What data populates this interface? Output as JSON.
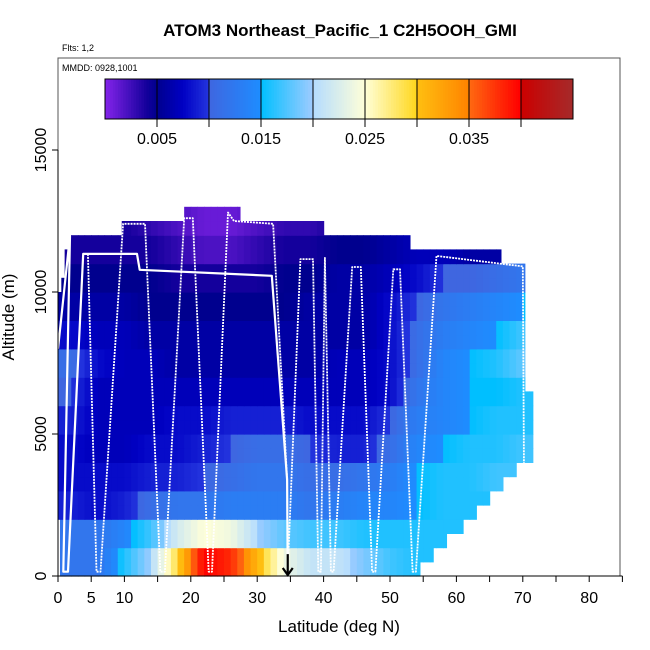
{
  "chart_data": {
    "type": "heatmap",
    "title": "ATOM3 Northeast_Pacific_1 C2H5OOH_GMI",
    "flights_note": "Flts: 1,2",
    "date_note": "MMDD: 0928,1001",
    "xlabel": "Latitude (deg N)",
    "ylabel": "Altitude (m)",
    "xlim": [
      0,
      85
    ],
    "ylim": [
      0,
      18000
    ],
    "xticks": [
      0,
      5,
      10,
      15,
      20,
      25,
      30,
      35,
      40,
      45,
      50,
      55,
      60,
      65,
      70,
      75,
      80,
      85
    ],
    "xtick_labels": [
      {
        "value": 0,
        "label": "0"
      },
      {
        "value": 5,
        "label": "5"
      },
      {
        "value": 10,
        "label": "10"
      },
      {
        "value": 20,
        "label": "20"
      },
      {
        "value": 30,
        "label": "30"
      },
      {
        "value": 40,
        "label": "40"
      },
      {
        "value": 50,
        "label": "50"
      },
      {
        "value": 60,
        "label": "60"
      },
      {
        "value": 70,
        "label": "70"
      },
      {
        "value": 80,
        "label": "80"
      }
    ],
    "yticks": [
      {
        "value": 0,
        "label": "0"
      },
      {
        "value": 5000,
        "label": "5000"
      },
      {
        "value": 10000,
        "label": "10000"
      },
      {
        "value": 15000,
        "label": "15000"
      }
    ],
    "colorbar": {
      "range": [
        0,
        0.045
      ],
      "boundaries": [
        0.005,
        0.01,
        0.015,
        0.02,
        0.025,
        0.03,
        0.035,
        0.04
      ],
      "labels": [
        {
          "value": 0.005,
          "label": "0.005"
        },
        {
          "value": 0.015,
          "label": "0.015"
        },
        {
          "value": 0.025,
          "label": "0.025"
        },
        {
          "value": 0.035,
          "label": "0.035"
        }
      ],
      "stops": [
        [
          0.0,
          "#8424ea"
        ],
        [
          0.004,
          "#14009c"
        ],
        [
          0.005,
          "#00008e"
        ],
        [
          0.0075,
          "#0000c4"
        ],
        [
          0.0099,
          "#2233dd"
        ],
        [
          0.01,
          "#3f66e0"
        ],
        [
          0.0149,
          "#1e8cff"
        ],
        [
          0.015,
          "#00bfff"
        ],
        [
          0.0199,
          "#9ccbff"
        ],
        [
          0.02,
          "#b4dcff"
        ],
        [
          0.025,
          "#ffffd8"
        ],
        [
          0.0299,
          "#ffd820"
        ],
        [
          0.03,
          "#ffc010"
        ],
        [
          0.0349,
          "#ff8400"
        ],
        [
          0.035,
          "#ff6a10"
        ],
        [
          0.0399,
          "#ff0000"
        ],
        [
          0.04,
          "#cc0000"
        ],
        [
          0.045,
          "#a52a2a"
        ]
      ]
    },
    "grid": {
      "lat_centers": [
        2,
        6,
        10,
        14,
        18,
        22,
        26,
        30,
        34,
        38,
        42,
        46,
        50,
        54,
        58,
        62,
        66,
        70
      ],
      "alt_bin_size_m": 1000,
      "values": [
        [
          0.012,
          0.012,
          0.016,
          0.02,
          0.029,
          0.04,
          0.038,
          0.031,
          0.024,
          0.021,
          0.021,
          0.019,
          0.017,
          0.016,
          0.016,
          0.016,
          0.016,
          0.016
        ],
        [
          0.012,
          0.012,
          0.014,
          0.017,
          0.022,
          0.025,
          0.024,
          0.02,
          0.018,
          0.017,
          0.017,
          0.016,
          0.016,
          0.016,
          0.016,
          0.016,
          0.016,
          0.016
        ],
        [
          0.009,
          0.008,
          0.009,
          0.011,
          0.012,
          0.012,
          0.013,
          0.013,
          0.013,
          0.012,
          0.013,
          0.014,
          0.014,
          0.015,
          0.016,
          0.016,
          0.016,
          0.016
        ],
        [
          0.008,
          0.008,
          0.008,
          0.009,
          0.009,
          0.01,
          0.011,
          0.012,
          0.012,
          0.011,
          0.011,
          0.012,
          0.013,
          0.015,
          0.016,
          0.016,
          0.017,
          0.017
        ],
        [
          0.008,
          0.007,
          0.007,
          0.008,
          0.008,
          0.009,
          0.01,
          0.011,
          0.011,
          0.01,
          0.009,
          0.009,
          0.011,
          0.014,
          0.015,
          0.016,
          0.016,
          0.017
        ],
        [
          0.009,
          0.007,
          0.007,
          0.007,
          0.008,
          0.008,
          0.009,
          0.009,
          0.009,
          0.008,
          0.008,
          0.008,
          0.01,
          0.013,
          0.014,
          0.015,
          0.016,
          0.016
        ],
        [
          0.01,
          0.007,
          0.007,
          0.007,
          0.007,
          0.007,
          0.007,
          0.007,
          0.007,
          0.007,
          0.007,
          0.007,
          0.008,
          0.012,
          0.014,
          0.015,
          0.015,
          0.016
        ],
        [
          0.011,
          0.008,
          0.007,
          0.007,
          0.006,
          0.006,
          0.006,
          0.006,
          0.006,
          0.006,
          0.007,
          0.007,
          0.008,
          0.011,
          0.014,
          0.015,
          0.016,
          0.018
        ],
        [
          0.008,
          0.007,
          0.007,
          0.006,
          0.006,
          0.006,
          0.006,
          0.006,
          0.006,
          0.006,
          0.006,
          0.006,
          0.008,
          0.011,
          0.013,
          0.014,
          0.015,
          0.017
        ],
        [
          0.006,
          0.006,
          0.006,
          0.005,
          0.005,
          0.005,
          0.005,
          0.005,
          0.005,
          0.006,
          0.006,
          0.006,
          0.008,
          0.01,
          0.012,
          0.013,
          0.014,
          0.015
        ],
        [
          0.005,
          0.005,
          0.005,
          0.005,
          0.004,
          0.004,
          0.004,
          0.004,
          0.005,
          0.005,
          0.006,
          0.006,
          0.007,
          0.008,
          0.01,
          0.01,
          0.011,
          0.012
        ],
        [
          0.004,
          0.004,
          0.004,
          0.004,
          0.003,
          0.002,
          0.002,
          0.003,
          0.004,
          0.004,
          0.005,
          0.005,
          0.006,
          0.007,
          0.007,
          0.006,
          0.006,
          0.006
        ],
        [
          0.004,
          0.004,
          0.004,
          0.003,
          0.002,
          0.001,
          0.001,
          0.002,
          0.003,
          0.003,
          0.004,
          0.004,
          0.005,
          0.005,
          0.005,
          0.005,
          0.005,
          0.005
        ]
      ],
      "row_size_m": 500,
      "row_lat_extents": [
        [
          0.3,
          54.5
        ],
        [
          0.3,
          56.5
        ],
        [
          0.3,
          58.5
        ],
        [
          0.3,
          61
        ],
        [
          0,
          63
        ],
        [
          0,
          65
        ],
        [
          0,
          67
        ],
        [
          0,
          69
        ],
        [
          0,
          71.5
        ],
        [
          0,
          71.5
        ],
        [
          0,
          71.5
        ],
        [
          0,
          71.5
        ],
        [
          0,
          71.5
        ],
        [
          0,
          70.3
        ],
        [
          0,
          70.3
        ],
        [
          0,
          70.3
        ],
        [
          0,
          70.3
        ],
        [
          0,
          70.3
        ],
        [
          0,
          70.3
        ],
        [
          0,
          70.3
        ],
        [
          0.5,
          70.3
        ],
        [
          1,
          70.3
        ],
        [
          1,
          66.7
        ],
        [
          1.8,
          53
        ],
        [
          9.6,
          40
        ],
        [
          19,
          27.4
        ]
      ]
    },
    "flight_track": {
      "level_legs": [
        [
          [
            0,
            8000
          ],
          [
            1.8,
            12000
          ],
          [
            0.8,
            150
          ],
          [
            1.5,
            150
          ],
          [
            3.8,
            11340
          ],
          [
            11.9,
            11340
          ],
          [
            12.3,
            10780
          ],
          [
            32.2,
            10570
          ],
          [
            34.5,
            3400
          ],
          [
            34.6,
            150
          ]
        ]
      ],
      "profiles": [
        [
          [
            4.5,
            11340
          ],
          [
            5.8,
            150
          ],
          [
            6.4,
            150
          ],
          [
            9.8,
            12400
          ],
          [
            13.1,
            12400
          ],
          [
            15.4,
            150
          ],
          [
            16.1,
            150
          ],
          [
            19,
            12600
          ],
          [
            20.3,
            12600
          ],
          [
            22.7,
            150
          ],
          [
            23.2,
            150
          ],
          [
            25.6,
            12800
          ],
          [
            26.5,
            12500
          ],
          [
            32.4,
            12400
          ],
          [
            34.5,
            3400
          ]
        ],
        [
          [
            34.6,
            150
          ],
          [
            36.5,
            11160
          ],
          [
            38.4,
            11160
          ],
          [
            39.2,
            150
          ],
          [
            39.6,
            150
          ],
          [
            40.2,
            11200
          ],
          [
            41.1,
            150
          ],
          [
            41.5,
            150
          ],
          [
            44.3,
            10880
          ],
          [
            45.6,
            10880
          ],
          [
            47.3,
            150
          ],
          [
            47.8,
            150
          ],
          [
            50.5,
            10800
          ],
          [
            51.5,
            10800
          ],
          [
            53.4,
            150
          ],
          [
            53.9,
            150
          ],
          [
            57,
            11270
          ],
          [
            70,
            10900
          ],
          [
            70.2,
            3000
          ]
        ]
      ]
    },
    "marker": {
      "lat": 34.6,
      "alt_top": 700,
      "alt_bottom": 0,
      "type": "down-arrow"
    }
  }
}
